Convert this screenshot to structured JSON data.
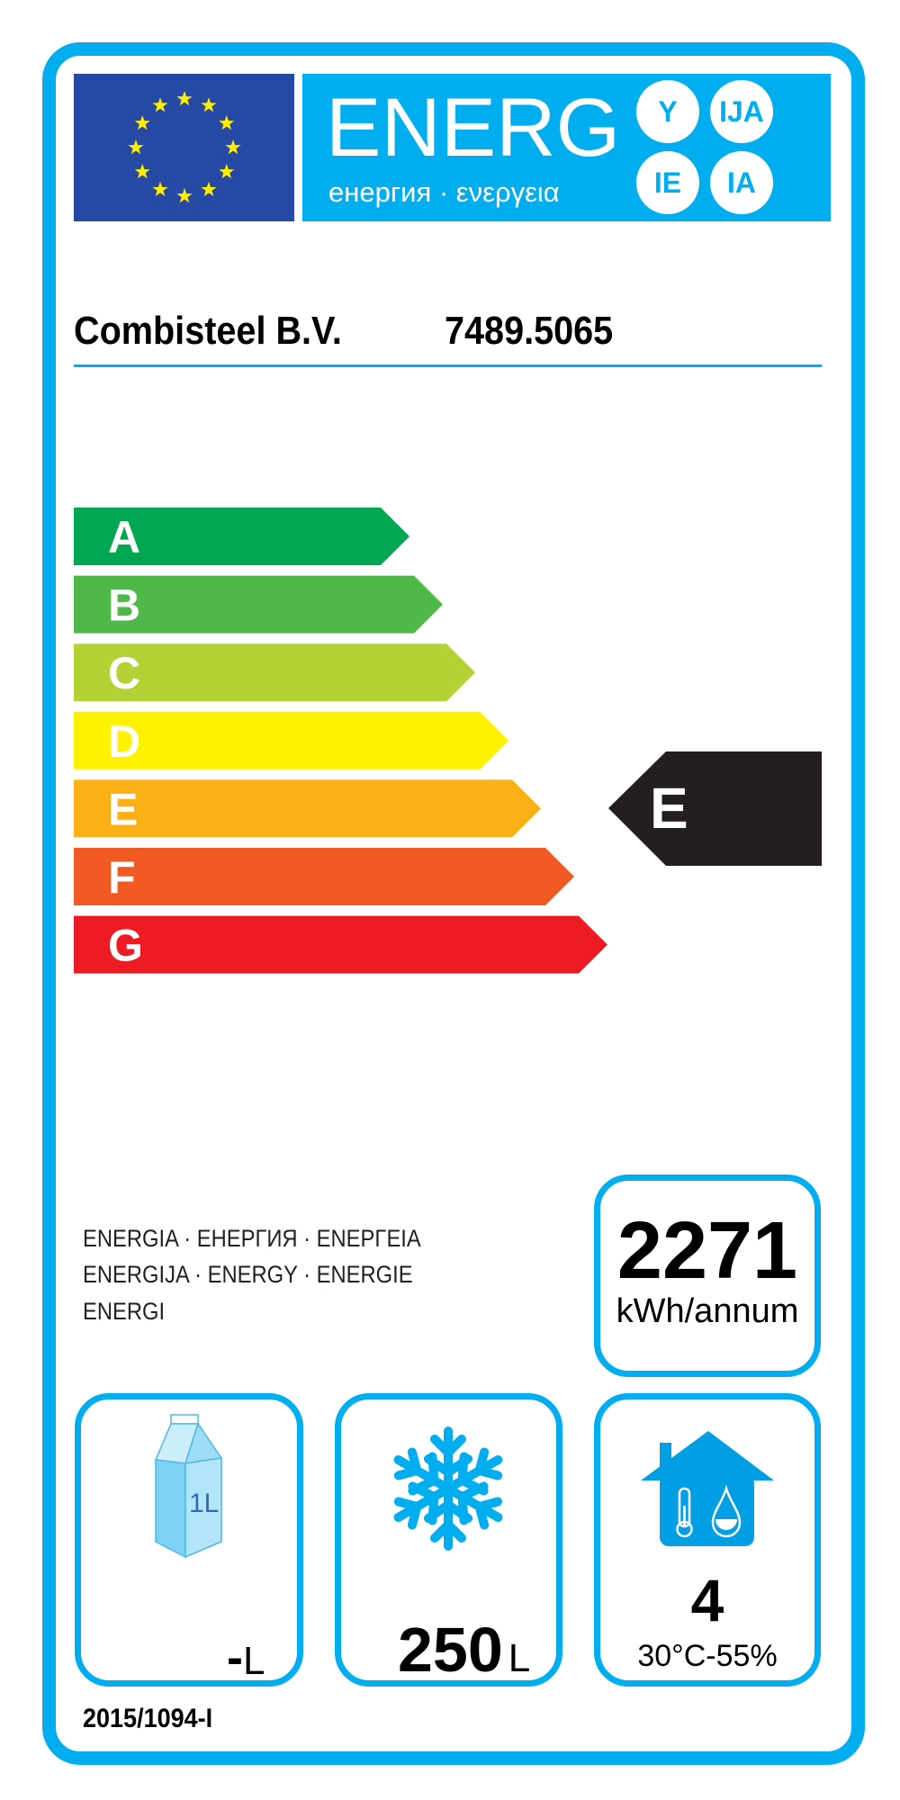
{
  "header": {
    "energ_word": "ENERG",
    "energ_subtitle": "енергия · ενεργεια",
    "suffixes": [
      "Y",
      "IJA",
      "IE",
      "IA"
    ],
    "flag_colors": {
      "blue": "#2549a5",
      "star": "#ffed00"
    },
    "brand_color": "#00aeef"
  },
  "product": {
    "supplier": "Combisteel B.V.",
    "model": "7489.5065"
  },
  "scale": {
    "classes": [
      {
        "letter": "A",
        "color": "#00a651"
      },
      {
        "letter": "B",
        "color": "#50b848"
      },
      {
        "letter": "C",
        "color": "#b2d235"
      },
      {
        "letter": "D",
        "color": "#fff200"
      },
      {
        "letter": "E",
        "color": "#fbb116"
      },
      {
        "letter": "F",
        "color": "#f15a22"
      },
      {
        "letter": "G",
        "color": "#ed1c24"
      }
    ],
    "rating": "E",
    "rating_color": "#231f20"
  },
  "energy": {
    "lines": [
      "ENERGIA · ЕНЕРГИЯ · ΕΝΕΡΓΕΙΑ",
      "ENERGIJA · ENERGY · ENERGIE",
      "ENERGI"
    ],
    "value": "2271",
    "unit": "kWh/annum"
  },
  "pictograms": {
    "chilled": {
      "icon": "milk-carton-icon",
      "carton_label": "1L",
      "value": "-",
      "unit": "L"
    },
    "frozen": {
      "icon": "snowflake-icon",
      "value": "250",
      "unit": "L"
    },
    "climate": {
      "icon": "house-climate-icon",
      "value": "4",
      "conditions": "30°C-55%"
    }
  },
  "regulation": "2015/1094-I"
}
